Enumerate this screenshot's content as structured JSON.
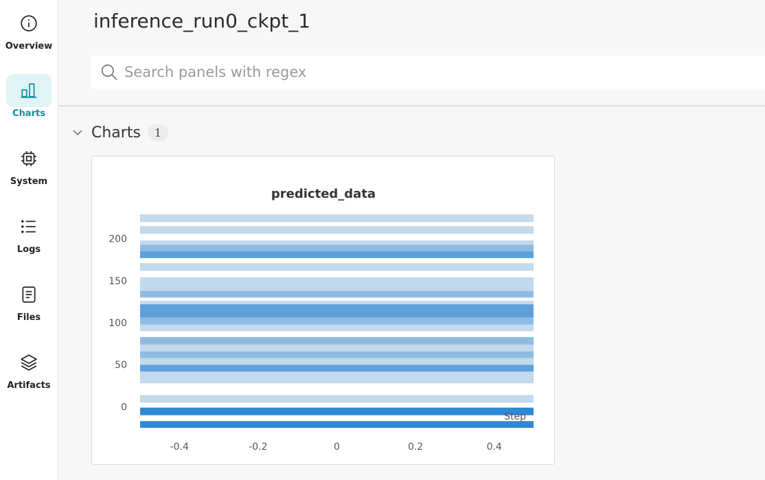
{
  "sidebar": {
    "items": [
      {
        "label": "Overview",
        "icon": "info-icon",
        "active": false
      },
      {
        "label": "Charts",
        "icon": "bar-chart-icon",
        "active": true
      },
      {
        "label": "System",
        "icon": "chip-icon",
        "active": false
      },
      {
        "label": "Logs",
        "icon": "list-icon",
        "active": false
      },
      {
        "label": "Files",
        "icon": "file-icon",
        "active": false
      },
      {
        "label": "Artifacts",
        "icon": "layers-icon",
        "active": false
      }
    ]
  },
  "header": {
    "title": "inference_run0_ckpt_1"
  },
  "search": {
    "placeholder": "Search panels with regex",
    "value": ""
  },
  "section": {
    "title": "Charts",
    "count": "1"
  },
  "colors": {
    "accent": "#0f8ea0",
    "active_bg": "#e2f3f6",
    "band_light": "#c3d9ec",
    "band_mid": "#8fbbe3",
    "band_dark": "#5da1dc",
    "band_darkest": "#2f88d6"
  },
  "chart_data": {
    "type": "heatmap",
    "title": "predicted_data",
    "xlabel": "Step",
    "ylabel": "",
    "xlim": [
      -0.5,
      0.5
    ],
    "ylim": [
      -25,
      230
    ],
    "x_ticks": [
      "-0.4",
      "-0.2",
      "0",
      "0.2",
      "0.4"
    ],
    "y_ticks": [
      "0",
      "50",
      "100",
      "150",
      "200"
    ],
    "bands": [
      {
        "y0": 220,
        "y1": 229,
        "shade": "light"
      },
      {
        "y0": 206,
        "y1": 215,
        "shade": "light"
      },
      {
        "y0": 193,
        "y1": 198,
        "shade": "light"
      },
      {
        "y0": 185,
        "y1": 193,
        "shade": "mid"
      },
      {
        "y0": 177,
        "y1": 185,
        "shade": "dark"
      },
      {
        "y0": 162,
        "y1": 171,
        "shade": "light"
      },
      {
        "y0": 138,
        "y1": 154,
        "shade": "light"
      },
      {
        "y0": 130,
        "y1": 138,
        "shade": "mid"
      },
      {
        "y0": 122,
        "y1": 126,
        "shade": "light"
      },
      {
        "y0": 106,
        "y1": 122,
        "shade": "dark"
      },
      {
        "y0": 98,
        "y1": 106,
        "shade": "mid"
      },
      {
        "y0": 90,
        "y1": 98,
        "shade": "light"
      },
      {
        "y0": 74,
        "y1": 83,
        "shade": "mid"
      },
      {
        "y0": 66,
        "y1": 74,
        "shade": "light"
      },
      {
        "y0": 58,
        "y1": 66,
        "shade": "mid"
      },
      {
        "y0": 50,
        "y1": 58,
        "shade": "light"
      },
      {
        "y0": 42,
        "y1": 50,
        "shade": "dark"
      },
      {
        "y0": 28,
        "y1": 42,
        "shade": "light"
      },
      {
        "y0": 5,
        "y1": 14,
        "shade": "light"
      },
      {
        "y0": -10,
        "y1": -1,
        "shade": "darkest"
      },
      {
        "y0": -25,
        "y1": -17,
        "shade": "darkest"
      }
    ]
  }
}
